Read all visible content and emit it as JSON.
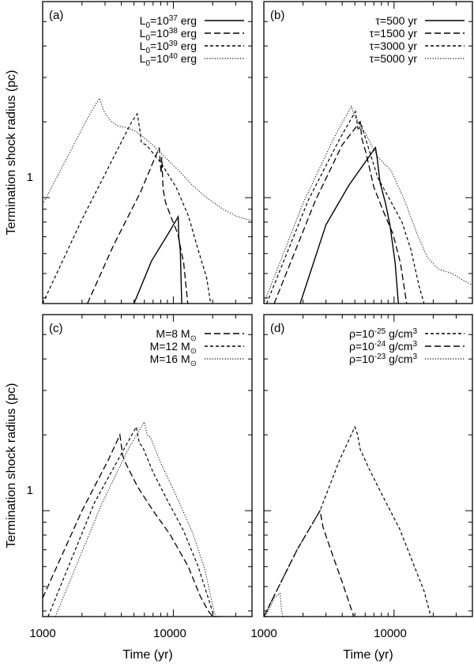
{
  "figure": {
    "y_label": "Termination shock radius (pc)",
    "x_label": "Time (yr)",
    "y_tick_label": "1"
  },
  "chart_data": [
    {
      "type": "line",
      "panel": "(a)",
      "x_scale": "log",
      "y_scale": "log",
      "xlim": [
        1000,
        40000
      ],
      "ylim": [
        0.38,
        6.0
      ],
      "xlabel": "",
      "ylabel": "Termination shock radius (pc)",
      "x_ticks": [],
      "y_ticks": [
        "1"
      ],
      "legend_position": "top-right",
      "series": [
        {
          "name": "L0=1e37 erg",
          "legend_parts": [
            "L",
            "0",
            "=10",
            "37",
            " erg"
          ],
          "dash": "solid",
          "points": [
            [
              5000,
              0.38
            ],
            [
              6800,
              0.56
            ],
            [
              9000,
              0.71
            ],
            [
              10900,
              0.84
            ],
            [
              11000,
              0.7
            ],
            [
              11300,
              0.62
            ],
            [
              11600,
              0.38
            ]
          ]
        },
        {
          "name": "L0=1e38 erg",
          "legend_parts": [
            "L",
            "0",
            "=10",
            "38",
            " erg"
          ],
          "dash": "long",
          "points": [
            [
              2200,
              0.38
            ],
            [
              3500,
              0.65
            ],
            [
              5600,
              1.05
            ],
            [
              7800,
              1.58
            ],
            [
              8050,
              1.25
            ],
            [
              8150,
              1.45
            ],
            [
              8350,
              1.08
            ],
            [
              8700,
              0.96
            ],
            [
              9500,
              0.85
            ],
            [
              10800,
              0.72
            ],
            [
              12000,
              0.55
            ],
            [
              12900,
              0.38
            ]
          ]
        },
        {
          "name": "L0=1e39 erg",
          "legend_parts": [
            "L",
            "0",
            "=10",
            "39",
            " erg"
          ],
          "dash": "short",
          "points": [
            [
              1000,
              0.38
            ],
            [
              2000,
              0.82
            ],
            [
              3500,
              1.45
            ],
            [
              4800,
              2.0
            ],
            [
              5300,
              2.15
            ],
            [
              5550,
              1.85
            ],
            [
              5700,
              1.65
            ],
            [
              6200,
              1.62
            ],
            [
              8000,
              1.38
            ],
            [
              10500,
              1.1
            ],
            [
              13000,
              0.85
            ],
            [
              15500,
              0.62
            ],
            [
              18000,
              0.48
            ],
            [
              19300,
              0.38
            ]
          ]
        },
        {
          "name": "L0=1e40 erg",
          "legend_parts": [
            "L",
            "0",
            "=10",
            "40",
            " erg"
          ],
          "dash": "dotted",
          "points": [
            [
              1000,
              0.94
            ],
            [
              1600,
              1.5
            ],
            [
              2300,
              2.15
            ],
            [
              2720,
              2.48
            ],
            [
              2950,
              2.2
            ],
            [
              3300,
              2.02
            ],
            [
              3800,
              1.92
            ],
            [
              4300,
              1.9
            ],
            [
              5200,
              1.83
            ],
            [
              6500,
              1.67
            ],
            [
              8500,
              1.46
            ],
            [
              11000,
              1.28
            ],
            [
              14000,
              1.12
            ],
            [
              18000,
              1.0
            ],
            [
              24000,
              0.9
            ],
            [
              31000,
              0.84
            ],
            [
              40000,
              0.81
            ]
          ]
        }
      ]
    },
    {
      "type": "line",
      "panel": "(b)",
      "x_scale": "log",
      "y_scale": "log",
      "xlim": [
        1000,
        40000
      ],
      "ylim": [
        0.38,
        6.0
      ],
      "xlabel": "",
      "ylabel": "",
      "x_ticks": [],
      "y_ticks": [],
      "legend_position": "top-right",
      "series": [
        {
          "name": "τ=500 yr",
          "legend_parts": [
            "τ=500 yr"
          ],
          "dash": "solid",
          "points": [
            [
              1900,
              0.38
            ],
            [
              3000,
              0.78
            ],
            [
              4500,
              1.12
            ],
            [
              7200,
              1.58
            ],
            [
              7400,
              1.45
            ],
            [
              7800,
              1.15
            ],
            [
              8600,
              0.95
            ],
            [
              9300,
              0.78
            ],
            [
              10200,
              0.55
            ],
            [
              10800,
              0.38
            ]
          ]
        },
        {
          "name": "τ=1500 yr",
          "legend_parts": [
            "τ=1500 yr"
          ],
          "dash": "long",
          "points": [
            [
              1200,
              0.38
            ],
            [
              2500,
              0.98
            ],
            [
              4000,
              1.62
            ],
            [
              5500,
              2.0
            ],
            [
              5650,
              1.72
            ],
            [
              6100,
              1.5
            ],
            [
              7000,
              1.1
            ],
            [
              8300,
              0.88
            ],
            [
              9800,
              0.72
            ],
            [
              11200,
              0.55
            ],
            [
              12500,
              0.38
            ]
          ]
        },
        {
          "name": "τ=3000 yr",
          "legend_parts": [
            "τ=3000 yr"
          ],
          "dash": "short",
          "points": [
            [
              1050,
              0.38
            ],
            [
              2200,
              0.98
            ],
            [
              3800,
              1.7
            ],
            [
              5050,
              2.2
            ],
            [
              5300,
              1.85
            ],
            [
              5600,
              1.95
            ],
            [
              6300,
              1.6
            ],
            [
              7500,
              1.2
            ],
            [
              9300,
              0.98
            ],
            [
              11500,
              0.8
            ],
            [
              13500,
              0.62
            ],
            [
              15500,
              0.45
            ],
            [
              17000,
              0.38
            ]
          ]
        },
        {
          "name": "τ=5000 yr",
          "legend_parts": [
            "τ=5000 yr"
          ],
          "dash": "dotted",
          "points": [
            [
              1000,
              0.38
            ],
            [
              2000,
              0.95
            ],
            [
              3500,
              1.75
            ],
            [
              4700,
              2.3
            ],
            [
              5000,
              2.1
            ],
            [
              5400,
              1.98
            ],
            [
              6200,
              1.75
            ],
            [
              7500,
              1.45
            ],
            [
              9500,
              1.28
            ],
            [
              12000,
              0.98
            ],
            [
              15000,
              0.72
            ],
            [
              18000,
              0.58
            ],
            [
              22000,
              0.52
            ],
            [
              28000,
              0.5
            ],
            [
              34000,
              0.47
            ],
            [
              40000,
              0.45
            ]
          ]
        }
      ]
    },
    {
      "type": "line",
      "panel": "(c)",
      "x_scale": "log",
      "y_scale": "log",
      "xlim": [
        1000,
        40000
      ],
      "ylim": [
        0.38,
        6.0
      ],
      "xlabel": "Time (yr)",
      "ylabel": "Termination shock radius (pc)",
      "x_ticks": [
        "1000",
        "10000"
      ],
      "y_ticks": [
        "1"
      ],
      "legend_position": "top-right",
      "series": [
        {
          "name": "M=8 Msun",
          "legend_parts": [
            "M=8 M",
            "⊙"
          ],
          "dash": "long",
          "points": [
            [
              1000,
              0.45
            ],
            [
              2000,
              1.0
            ],
            [
              3200,
              1.6
            ],
            [
              3900,
              2.0
            ],
            [
              4100,
              1.65
            ],
            [
              4300,
              1.55
            ],
            [
              5300,
              1.25
            ],
            [
              7000,
              1.0
            ],
            [
              9500,
              0.8
            ],
            [
              13000,
              0.6
            ],
            [
              16000,
              0.46
            ],
            [
              18500,
              0.4
            ],
            [
              20000,
              0.38
            ],
            [
              24000,
              0.38
            ]
          ]
        },
        {
          "name": "M=12 Msun",
          "legend_parts": [
            "M=12 M",
            "⊙"
          ],
          "dash": "short",
          "points": [
            [
              1100,
              0.38
            ],
            [
              2500,
              1.08
            ],
            [
              4000,
              1.68
            ],
            [
              5200,
              2.15
            ],
            [
              5500,
              1.85
            ],
            [
              5800,
              1.8
            ],
            [
              7000,
              1.42
            ],
            [
              9000,
              1.1
            ],
            [
              12000,
              0.83
            ],
            [
              15500,
              0.6
            ],
            [
              18500,
              0.45
            ],
            [
              20500,
              0.38
            ]
          ]
        },
        {
          "name": "M=16 Msun",
          "legend_parts": [
            "M=16 M",
            "⊙"
          ],
          "dash": "dotted",
          "points": [
            [
              1250,
              0.38
            ],
            [
              2800,
              1.05
            ],
            [
              4500,
              1.75
            ],
            [
              6000,
              2.25
            ],
            [
              6300,
              2.0
            ],
            [
              6700,
              1.95
            ],
            [
              8000,
              1.55
            ],
            [
              10500,
              1.15
            ],
            [
              14000,
              0.82
            ],
            [
              17500,
              0.58
            ],
            [
              20000,
              0.42
            ],
            [
              21000,
              0.38
            ]
          ]
        }
      ]
    },
    {
      "type": "line",
      "panel": "(d)",
      "x_scale": "log",
      "y_scale": "log",
      "xlim": [
        1000,
        40000
      ],
      "ylim": [
        0.38,
        6.0
      ],
      "xlabel": "Time (yr)",
      "ylabel": "",
      "x_ticks": [
        "1000",
        "10000"
      ],
      "y_ticks": [],
      "legend_position": "top-right",
      "series": [
        {
          "name": "ρ=1e-25 g/cm3",
          "legend_parts": [
            "ρ=10",
            "-25",
            " g/cm",
            "3"
          ],
          "dash": "short",
          "points": [
            [
              1000,
              0.38
            ],
            [
              1800,
              0.7
            ],
            [
              2700,
              1.0
            ],
            [
              3800,
              1.58
            ],
            [
              5000,
              2.15
            ],
            [
              5250,
              2.0
            ],
            [
              5500,
              1.75
            ],
            [
              6500,
              1.45
            ],
            [
              8500,
              1.1
            ],
            [
              11000,
              0.85
            ],
            [
              14000,
              0.62
            ],
            [
              17000,
              0.48
            ],
            [
              19200,
              0.38
            ]
          ]
        },
        {
          "name": "ρ=1e-24 g/cm3",
          "legend_parts": [
            "ρ=10",
            "-24",
            " g/cm",
            "3"
          ],
          "dash": "long",
          "points": [
            [
              1000,
              0.38
            ],
            [
              1800,
              0.7
            ],
            [
              2700,
              1.0
            ],
            [
              2850,
              0.86
            ],
            [
              3200,
              0.72
            ],
            [
              4000,
              0.52
            ],
            [
              4600,
              0.42
            ],
            [
              4900,
              0.38
            ]
          ]
        },
        {
          "name": "ρ=1e-23 g/cm3",
          "legend_parts": [
            "ρ=10",
            "-23",
            " g/cm",
            "3"
          ],
          "dash": "dotted",
          "points": [
            [
              1030,
              0.38
            ],
            [
              1200,
              0.45
            ],
            [
              1330,
              0.47
            ],
            [
              1370,
              0.4
            ],
            [
              1400,
              0.38
            ]
          ]
        }
      ]
    }
  ]
}
